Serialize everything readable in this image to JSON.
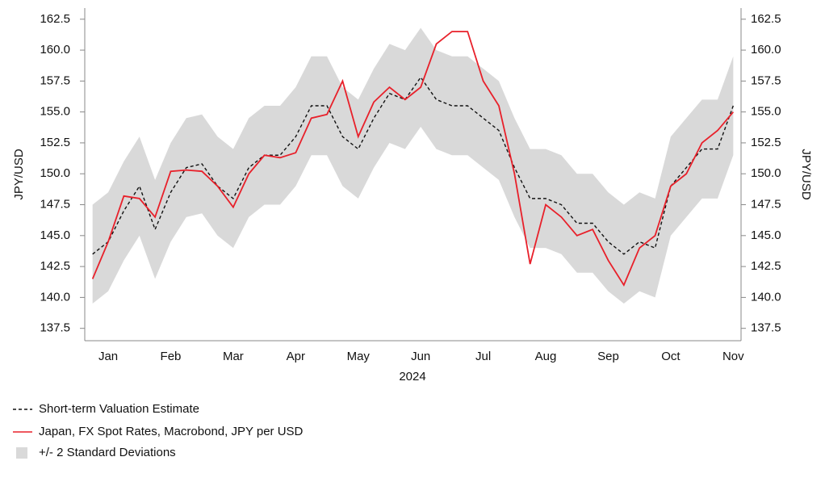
{
  "chart_data": {
    "type": "line",
    "x_label": "2024",
    "y_label": "JPY/USD",
    "y2_label": "JPY/USD",
    "categories": [
      null,
      "Jan",
      null,
      null,
      null,
      "Feb",
      null,
      null,
      null,
      "Mar",
      null,
      null,
      null,
      "Apr",
      null,
      null,
      null,
      "May",
      null,
      null,
      null,
      "Jun",
      null,
      null,
      null,
      "Jul",
      null,
      null,
      null,
      "Aug",
      null,
      null,
      null,
      "Sep",
      null,
      null,
      null,
      "Oct",
      null,
      null,
      null,
      "Nov"
    ],
    "series": [
      {
        "name": "Short-term Valuation Estimate",
        "color": "#111111",
        "dashed": true,
        "values": [
          143.5,
          144.5,
          147.0,
          149.0,
          145.5,
          148.5,
          150.5,
          150.8,
          149.0,
          148.0,
          150.5,
          151.5,
          151.5,
          153.0,
          155.5,
          155.5,
          153.0,
          152.0,
          154.5,
          156.5,
          156.0,
          157.8,
          156.0,
          155.5,
          155.5,
          154.5,
          153.5,
          150.5,
          148.0,
          148.0,
          147.5,
          146.0,
          146.0,
          144.5,
          143.5,
          144.5,
          144.0,
          149.0,
          150.5,
          152.0,
          152.0,
          155.5
        ]
      },
      {
        "name": "Japan, FX Spot Rates, Macrobond, JPY per USD",
        "color": "#e8202a",
        "dashed": false,
        "values": [
          141.5,
          144.5,
          148.2,
          148.0,
          146.5,
          150.2,
          150.3,
          150.2,
          149.0,
          147.3,
          150.0,
          151.5,
          151.3,
          151.7,
          154.5,
          154.8,
          157.5,
          153.0,
          155.8,
          157.0,
          156.0,
          157.0,
          160.5,
          161.5,
          161.5,
          157.5,
          155.5,
          150.0,
          142.7,
          147.5,
          146.5,
          145.0,
          145.5,
          143.0,
          141.0,
          144.0,
          145.0,
          149.0,
          150.0,
          152.5,
          153.5,
          155.0
        ]
      }
    ],
    "band": {
      "name": "+/- 2 Standard Deviations",
      "color": "#d9d9d9",
      "low": [
        139.5,
        140.5,
        143.0,
        145.0,
        141.5,
        144.5,
        146.5,
        146.8,
        145.0,
        144.0,
        146.5,
        147.5,
        147.5,
        149.0,
        151.5,
        151.5,
        149.0,
        148.0,
        150.5,
        152.5,
        152.0,
        153.8,
        152.0,
        151.5,
        151.5,
        150.5,
        149.5,
        146.5,
        144.0,
        144.0,
        143.5,
        142.0,
        142.0,
        140.5,
        139.5,
        140.5,
        140.0,
        145.0,
        146.5,
        148.0,
        148.0,
        151.5
      ],
      "high": [
        147.5,
        148.5,
        151.0,
        153.0,
        149.5,
        152.5,
        154.5,
        154.8,
        153.0,
        152.0,
        154.5,
        155.5,
        155.5,
        157.0,
        159.5,
        159.5,
        157.0,
        156.0,
        158.5,
        160.5,
        160.0,
        161.8,
        160.0,
        159.5,
        159.5,
        158.5,
        157.5,
        154.5,
        152.0,
        152.0,
        151.5,
        150.0,
        150.0,
        148.5,
        147.5,
        148.5,
        148.0,
        153.0,
        154.5,
        156.0,
        156.0,
        159.5
      ]
    },
    "ylim": [
      136.5,
      163.4
    ],
    "yticks": [
      {
        "value": 137.5,
        "label": "137.5"
      },
      {
        "value": 140,
        "label": "140.0"
      },
      {
        "value": 142.5,
        "label": "142.5"
      },
      {
        "value": 145,
        "label": "145.0"
      },
      {
        "value": 147.5,
        "label": "147.5"
      },
      {
        "value": 150,
        "label": "150.0"
      },
      {
        "value": 152.5,
        "label": "152.5"
      },
      {
        "value": 155,
        "label": "155.0"
      },
      {
        "value": 157.5,
        "label": "157.5"
      },
      {
        "value": 160,
        "label": "160.0"
      },
      {
        "value": 162.5,
        "label": "162.5"
      }
    ],
    "y2lim": [
      136.5,
      163.4
    ],
    "y2ticks": [
      {
        "value": 137.5,
        "label": "137.5"
      },
      {
        "value": 140,
        "label": "140.0"
      },
      {
        "value": 142.5,
        "label": "142.5"
      },
      {
        "value": 145,
        "label": "145.0"
      },
      {
        "value": 147.5,
        "label": "147.5"
      },
      {
        "value": 150,
        "label": "150.0"
      },
      {
        "value": 152.5,
        "label": "152.5"
      },
      {
        "value": 155,
        "label": "155.0"
      },
      {
        "value": 157.5,
        "label": "157.5"
      },
      {
        "value": 160,
        "label": "160.0"
      },
      {
        "value": 162.5,
        "label": "162.5"
      }
    ]
  }
}
